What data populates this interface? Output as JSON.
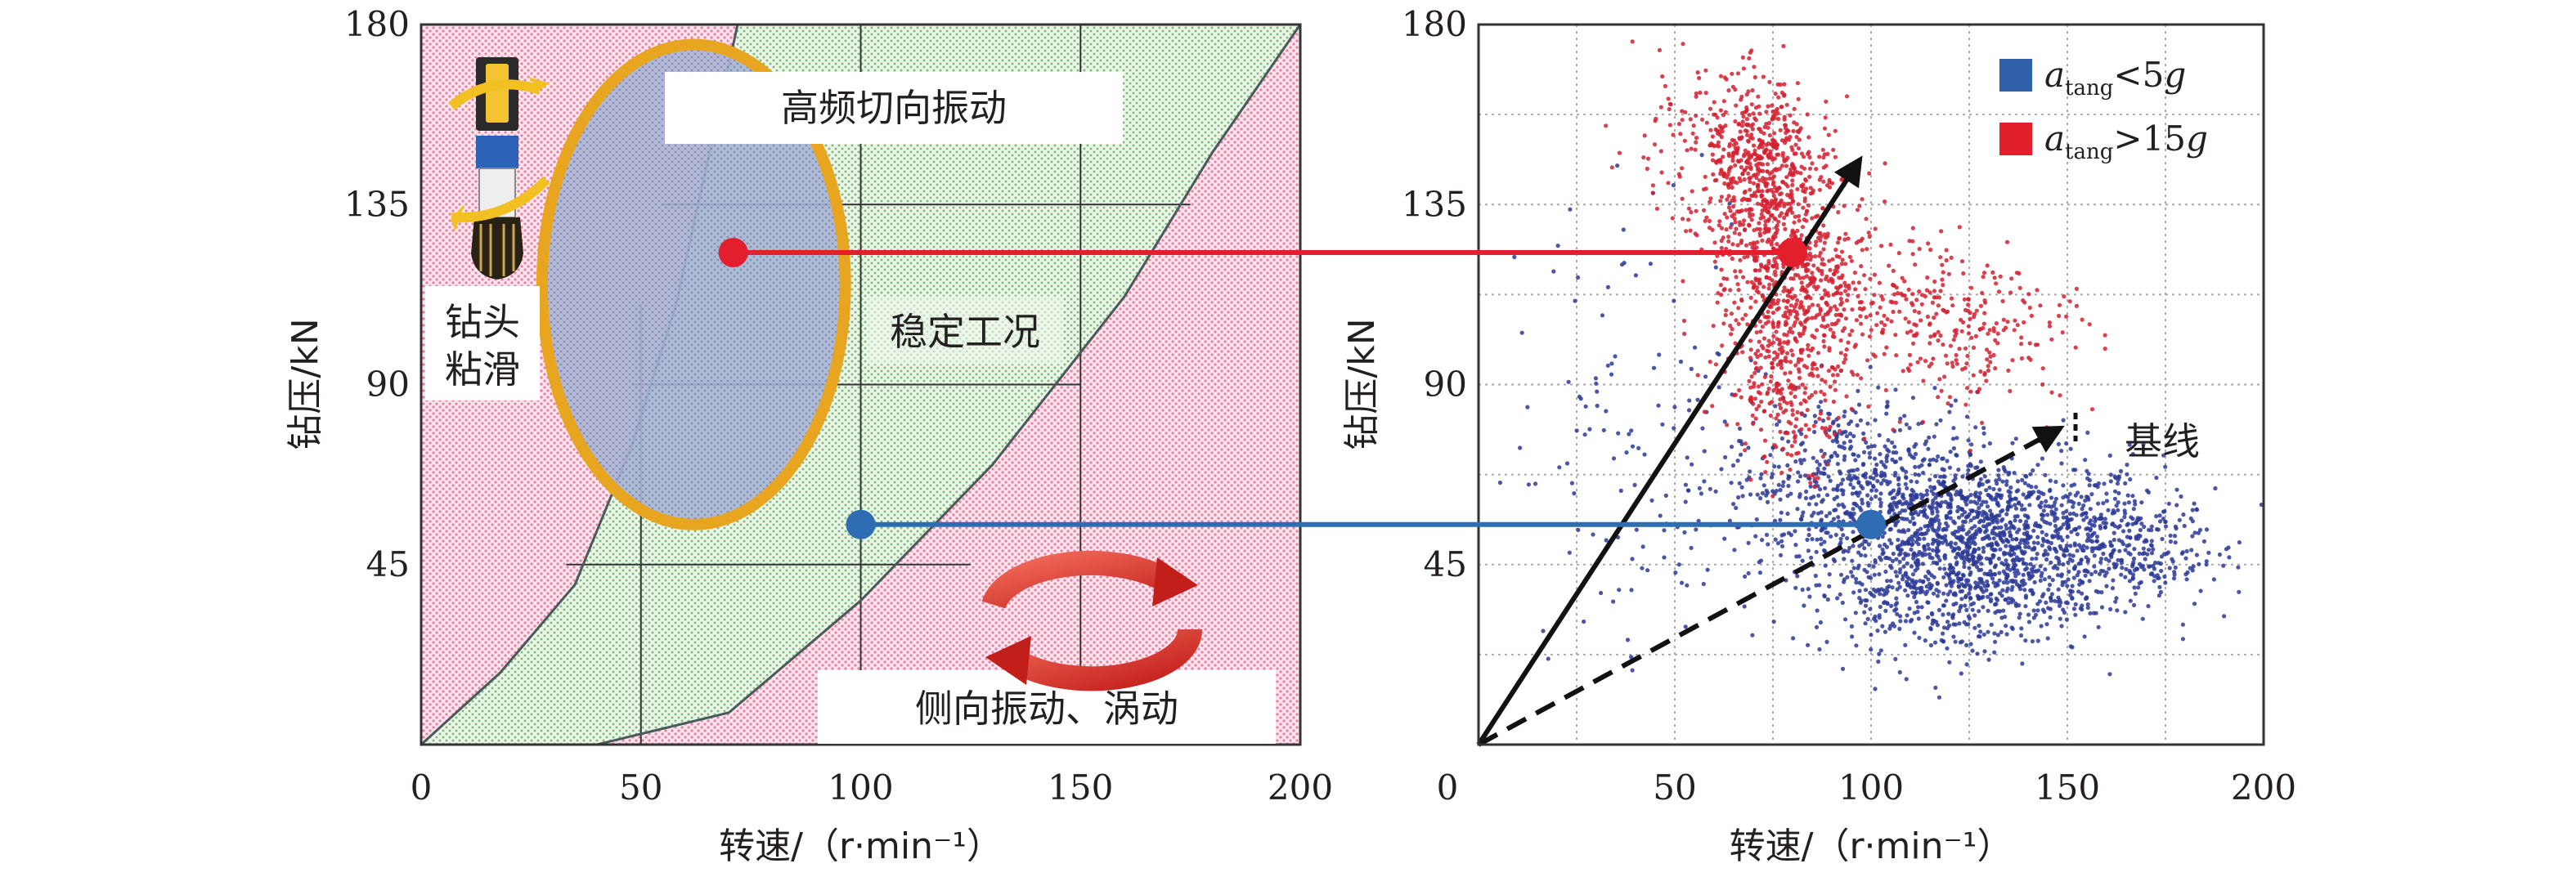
{
  "chart_data": [
    {
      "type": "area",
      "xlabel": "转速/（r·min⁻¹）",
      "ylabel": "钻压/kN",
      "xlim": [
        0,
        200
      ],
      "ylim": [
        0,
        180
      ],
      "x_ticks": [
        "0",
        "50",
        "100",
        "150",
        "200"
      ],
      "y_ticks": [
        "45",
        "90",
        "135",
        "180"
      ],
      "regions": [
        {
          "label": "高频切向振动",
          "color": "#9aa6c8",
          "center": [
            62,
            115
          ],
          "radius": [
            30,
            60
          ]
        },
        {
          "label": "稳定工况",
          "color": "#9ed39a",
          "bounds_lower": [
            [
              0,
              0
            ],
            [
              40,
              0
            ],
            [
              70,
              8
            ],
            [
              100,
              36
            ],
            [
              130,
              70
            ],
            [
              160,
              112
            ],
            [
              180,
              148
            ],
            [
              200,
              180
            ]
          ],
          "bounds_upper": [
            [
              0,
              0
            ],
            [
              18,
              18
            ],
            [
              35,
              40
            ],
            [
              48,
              75
            ],
            [
              58,
              110
            ],
            [
              65,
              145
            ],
            [
              72,
              180
            ]
          ]
        },
        {
          "label": "钻头\n粘滑",
          "color": "#f2a2bd"
        },
        {
          "label": "侧向振动、涡动",
          "color": "#f2a2bd"
        }
      ],
      "points": [
        {
          "name": "red-marker",
          "x": 71,
          "y": 123,
          "color": "#e41f2d"
        },
        {
          "name": "blue-marker",
          "x": 100,
          "y": 55,
          "color": "#2e6db3"
        }
      ],
      "grid": "partial"
    },
    {
      "type": "scatter",
      "xlabel": "转速/（r·min⁻¹）",
      "ylabel": "钻压/kN",
      "xlim": [
        0,
        200
      ],
      "ylim": [
        0,
        180
      ],
      "x_ticks": [
        "0",
        "50",
        "100",
        "150",
        "200"
      ],
      "y_ticks": [
        "45",
        "90",
        "135",
        "180"
      ],
      "grid": true,
      "legend_position": "top-right",
      "series": [
        {
          "name": "atang<5g",
          "legend_sym": "a",
          "legend_sub": "tang",
          "legend_rel": "<5",
          "legend_unit": "g",
          "color": "#2b3a96",
          "clusters": [
            {
              "cx": 130,
              "cy": 52,
              "sx": 22,
              "sy": 10,
              "n": 1300
            },
            {
              "cx": 95,
              "cy": 66,
              "sx": 16,
              "sy": 11,
              "n": 500
            },
            {
              "cx": 120,
              "cy": 38,
              "sx": 18,
              "sy": 8,
              "n": 400
            },
            {
              "cx": 165,
              "cy": 50,
              "sx": 12,
              "sy": 7,
              "n": 200
            },
            {
              "cx": 45,
              "cy": 80,
              "sx": 18,
              "sy": 30,
              "n": 130
            }
          ]
        },
        {
          "name": "atang>15g",
          "legend_sym": "a",
          "legend_sub": "tang",
          "legend_rel": ">15",
          "legend_unit": "g",
          "color": "#d42030",
          "clusters": [
            {
              "cx": 72,
              "cy": 142,
              "sx": 7,
              "sy": 12,
              "n": 480
            },
            {
              "cx": 80,
              "cy": 118,
              "sx": 10,
              "sy": 13,
              "n": 500
            },
            {
              "cx": 80,
              "cy": 92,
              "sx": 8,
              "sy": 11,
              "n": 300
            },
            {
              "cx": 110,
              "cy": 110,
              "sx": 16,
              "sy": 10,
              "n": 220
            },
            {
              "cx": 60,
              "cy": 150,
              "sx": 14,
              "sy": 9,
              "n": 160
            },
            {
              "cx": 130,
              "cy": 100,
              "sx": 14,
              "sy": 8,
              "n": 110
            }
          ]
        }
      ],
      "points": [
        {
          "name": "red-marker",
          "x": 80,
          "y": 123,
          "color": "#e41f2d"
        },
        {
          "name": "blue-marker",
          "x": 100,
          "y": 55,
          "color": "#2e6db3"
        }
      ],
      "arrows": [
        {
          "name": "solid-arrow",
          "from": [
            0,
            0
          ],
          "to": [
            97,
            146
          ],
          "style": "solid"
        },
        {
          "name": "baseline-arrow",
          "label": "基线",
          "from": [
            0,
            0
          ],
          "to": [
            148,
            79
          ],
          "style": "dashed"
        }
      ]
    }
  ],
  "connectors": [
    {
      "name": "red-connector",
      "color": "#e41f2d"
    },
    {
      "name": "blue-connector",
      "color": "#2e6db3"
    }
  ]
}
